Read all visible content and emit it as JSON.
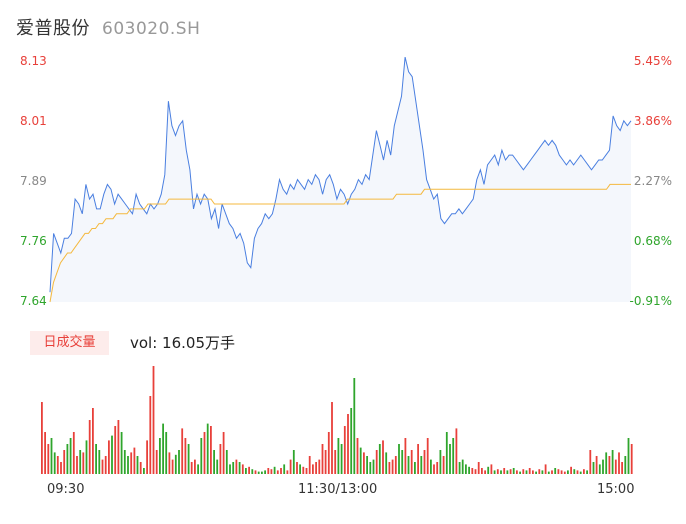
{
  "header": {
    "name": "爱普股份",
    "code": "603020.SH"
  },
  "colors": {
    "price_line": "#4a7fe0",
    "avg_line": "#f4b93f",
    "up": "#e8403a",
    "down": "#2fa52c",
    "flat": "#888888"
  },
  "volume": {
    "badge": "日成交量",
    "label": "vol: 16.05万手"
  },
  "chart_data": [
    {
      "type": "line",
      "title": "",
      "y_ticks_left": [
        "8.13",
        "8.01",
        "7.89",
        "7.76",
        "7.64"
      ],
      "y_ticks_right": [
        "5.45%",
        "3.86%",
        "2.27%",
        "0.68%",
        "-0.91%"
      ],
      "ylim": [
        7.64,
        8.13
      ],
      "x_ticks": [
        "09:30",
        "11:30/13:00",
        "15:00"
      ],
      "series": [
        {
          "name": "",
          "values": [
            7.66,
            7.78,
            7.76,
            7.74,
            7.77,
            7.77,
            7.78,
            7.85,
            7.84,
            7.82,
            7.88,
            7.85,
            7.86,
            7.83,
            7.83,
            7.86,
            7.88,
            7.87,
            7.84,
            7.86,
            7.85,
            7.84,
            7.83,
            7.82,
            7.86,
            7.84,
            7.83,
            7.82,
            7.84,
            7.83,
            7.84,
            7.86,
            7.9,
            8.05,
            8.0,
            7.98,
            8.0,
            8.01,
            7.95,
            7.91,
            7.83,
            7.86,
            7.84,
            7.86,
            7.85,
            7.81,
            7.83,
            7.79,
            7.84,
            7.82,
            7.8,
            7.79,
            7.77,
            7.78,
            7.76,
            7.72,
            7.71,
            7.77,
            7.79,
            7.8,
            7.82,
            7.81,
            7.82,
            7.85,
            7.89,
            7.87,
            7.86,
            7.88,
            7.87,
            7.89,
            7.88,
            7.87,
            7.89,
            7.88,
            7.9,
            7.89,
            7.86,
            7.89,
            7.9,
            7.88,
            7.85,
            7.87,
            7.86,
            7.84,
            7.86,
            7.87,
            7.89,
            7.88,
            7.9,
            7.89,
            7.94,
            7.99,
            7.96,
            7.93,
            7.97,
            7.94,
            8.0,
            8.03,
            8.06,
            8.14,
            8.11,
            8.1,
            8.05,
            8.0,
            7.95,
            7.89,
            7.87,
            7.85,
            7.86,
            7.81,
            7.8,
            7.81,
            7.82,
            7.82,
            7.83,
            7.82,
            7.83,
            7.84,
            7.85,
            7.89,
            7.91,
            7.88,
            7.92,
            7.93,
            7.94,
            7.92,
            7.95,
            7.93,
            7.94,
            7.94,
            7.93,
            7.92,
            7.91,
            7.92,
            7.93,
            7.94,
            7.95,
            7.96,
            7.97,
            7.96,
            7.97,
            7.96,
            7.94,
            7.93,
            7.92,
            7.93,
            7.92,
            7.93,
            7.94,
            7.93,
            7.92,
            7.91,
            7.92,
            7.93,
            7.93,
            7.94,
            7.95,
            8.02,
            8.0,
            7.99,
            8.01,
            8.0,
            8.01
          ]
        },
        {
          "name": "",
          "values": [
            7.64,
            7.68,
            7.7,
            7.72,
            7.73,
            7.74,
            7.74,
            7.75,
            7.76,
            7.77,
            7.78,
            7.78,
            7.79,
            7.79,
            7.8,
            7.8,
            7.81,
            7.81,
            7.81,
            7.82,
            7.82,
            7.82,
            7.82,
            7.83,
            7.83,
            7.83,
            7.83,
            7.83,
            7.84,
            7.84,
            7.84,
            7.84,
            7.84,
            7.84,
            7.85,
            7.85,
            7.85,
            7.85,
            7.85,
            7.85,
            7.85,
            7.85,
            7.85,
            7.85,
            7.85,
            7.85,
            7.85,
            7.84,
            7.84,
            7.84,
            7.84,
            7.84,
            7.84,
            7.84,
            7.84,
            7.84,
            7.84,
            7.84,
            7.84,
            7.84,
            7.84,
            7.84,
            7.84,
            7.84,
            7.84,
            7.84,
            7.84,
            7.84,
            7.84,
            7.84,
            7.84,
            7.84,
            7.84,
            7.84,
            7.84,
            7.84,
            7.84,
            7.84,
            7.84,
            7.84,
            7.84,
            7.84,
            7.84,
            7.84,
            7.84,
            7.85,
            7.85,
            7.85,
            7.85,
            7.85,
            7.85,
            7.85,
            7.85,
            7.85,
            7.85,
            7.85,
            7.85,
            7.85,
            7.85,
            7.86,
            7.86,
            7.86,
            7.86,
            7.86,
            7.86,
            7.86,
            7.86,
            7.87,
            7.87,
            7.87,
            7.87,
            7.87,
            7.87,
            7.87,
            7.87,
            7.87,
            7.87,
            7.87,
            7.87,
            7.87,
            7.87,
            7.87,
            7.87,
            7.87,
            7.87,
            7.87,
            7.87,
            7.87,
            7.87,
            7.87,
            7.87,
            7.87,
            7.87,
            7.87,
            7.87,
            7.87,
            7.87,
            7.87,
            7.87,
            7.87,
            7.87,
            7.87,
            7.87,
            7.87,
            7.87,
            7.87,
            7.87,
            7.87,
            7.87,
            7.87,
            7.87,
            7.87,
            7.87,
            7.87,
            7.87,
            7.87,
            7.87,
            7.87,
            7.87,
            7.87,
            7.88,
            7.88,
            7.88,
            7.88,
            7.88,
            7.88,
            7.88
          ]
        }
      ]
    },
    {
      "type": "bar",
      "title": "",
      "values": [
        60,
        35,
        25,
        30,
        18,
        15,
        10,
        20,
        25,
        30,
        35,
        15,
        20,
        18,
        28,
        45,
        55,
        25,
        20,
        12,
        15,
        28,
        32,
        40,
        45,
        35,
        20,
        15,
        18,
        22,
        15,
        10,
        5,
        28,
        65,
        90,
        20,
        30,
        42,
        35,
        18,
        12,
        16,
        20,
        38,
        30,
        25,
        10,
        12,
        8,
        30,
        35,
        42,
        40,
        20,
        12,
        25,
        35,
        20,
        8,
        10,
        12,
        10,
        8,
        5,
        6,
        4,
        3,
        2,
        2,
        3,
        5,
        4,
        6,
        3,
        5,
        8,
        3,
        12,
        20,
        10,
        8,
        6,
        5,
        15,
        8,
        10,
        12,
        25,
        20,
        35,
        60,
        20,
        30,
        25,
        40,
        50,
        55,
        80,
        30,
        22,
        18,
        15,
        10,
        12,
        20,
        25,
        28,
        18,
        10,
        12,
        15,
        25,
        20,
        30,
        15,
        20,
        10,
        25,
        15,
        20,
        30,
        12,
        8,
        10,
        20,
        15,
        35,
        25,
        30,
        38,
        10,
        12,
        8,
        6,
        5,
        4,
        10,
        5,
        3,
        6,
        8,
        3,
        4,
        3,
        5,
        3,
        4,
        5,
        3,
        2,
        4,
        3,
        5,
        3,
        2,
        4,
        3,
        8,
        2,
        3,
        5,
        4,
        3,
        2,
        3,
        6,
        4,
        3,
        2,
        4,
        3,
        20,
        10,
        15,
        8,
        12,
        18,
        15,
        20,
        12,
        18,
        10,
        15,
        30,
        25
      ],
      "direction": "urrggrrrggrrgrgrrggrrrgrrgggrrgrgrrrrgggrrggrrgrrggrgrggrrgggrgrgrgrgggrrgrrgrrgrgrrrrrrrrrrrggrrggrgrgggrgrgrrrggrgrgrgrrgrrgrgggrggggrrrrrgrgrgrgrgrgrgrrgrgrgrgrrrgrgrgrgrgrgggrgrrrggrrgrrgrrf"
    }
  ]
}
